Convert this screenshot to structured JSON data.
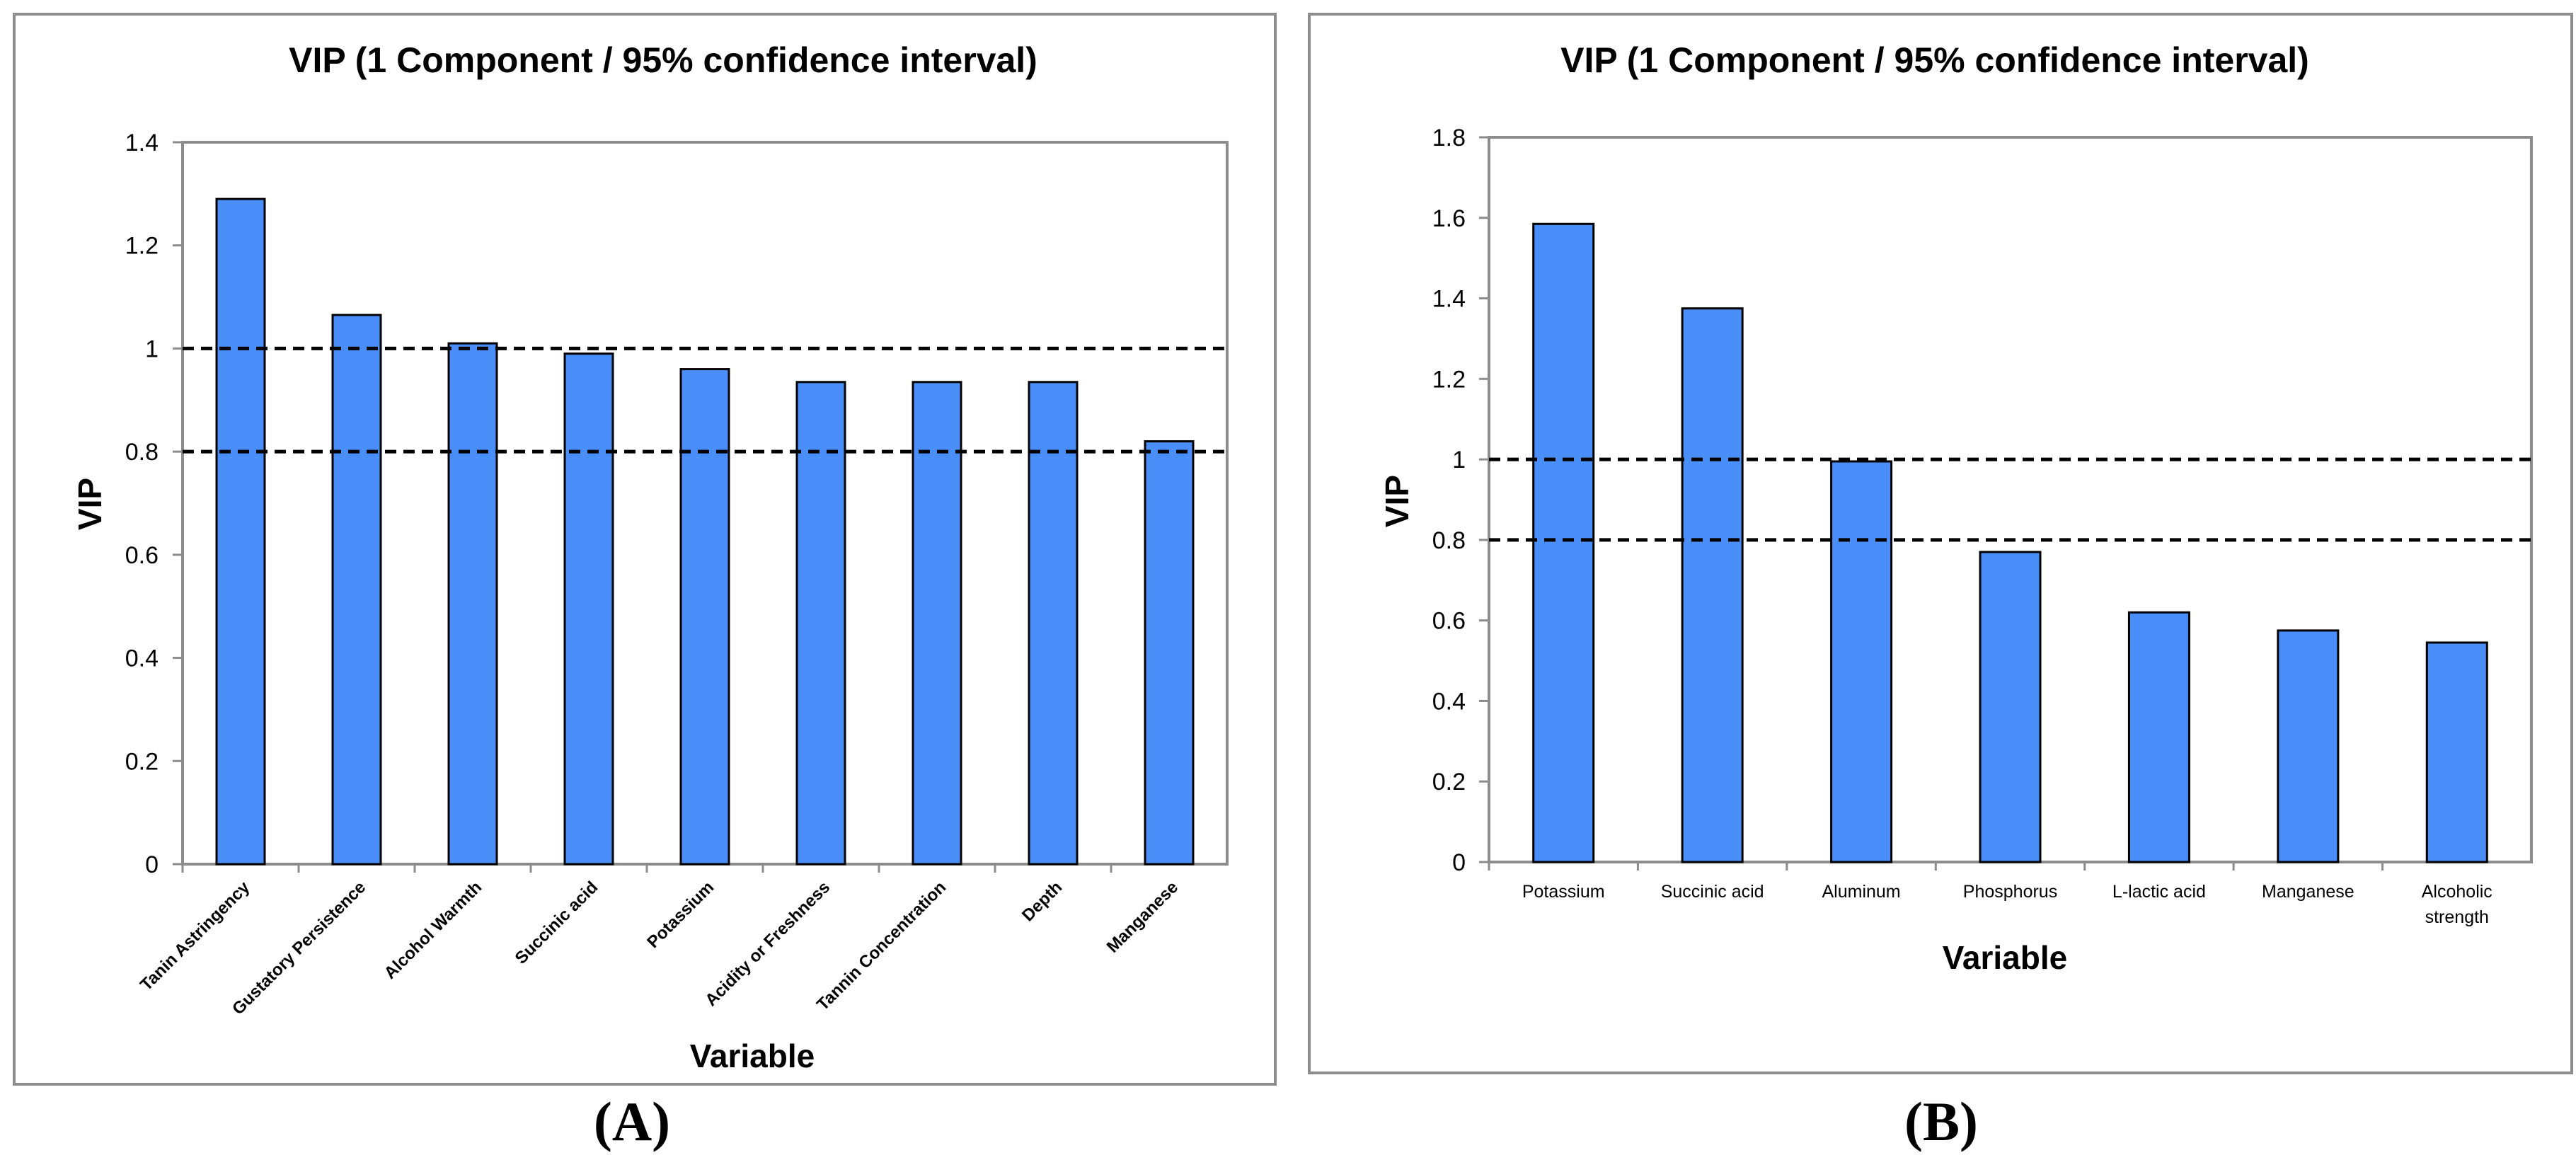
{
  "chart_data": [
    {
      "type": "bar",
      "panel_label": "(A)",
      "title": "VIP (1 Component / 95% confidence interval)",
      "xlabel": "Variable",
      "ylabel": "VIP",
      "ylim": [
        0,
        1.4
      ],
      "yticks": [
        "0",
        "0.2",
        "0.4",
        "0.6",
        "0.8",
        "1",
        "1.2",
        "1.4"
      ],
      "categories": [
        "Tanin Astringency",
        "Gustatory Persistence",
        "Alcohol Warmth",
        "Succinic acid",
        "Potassium",
        "Acidity or Freshness",
        "Tannin Concentration",
        "Depth",
        "Manganese"
      ],
      "values": [
        1.29,
        1.065,
        1.01,
        0.99,
        0.96,
        0.935,
        0.935,
        0.935,
        0.82
      ],
      "reference_lines": [
        1.0,
        0.8
      ],
      "bar_color": "#4a8ff9",
      "grid": false
    },
    {
      "type": "bar",
      "panel_label": "(B)",
      "title": "VIP (1 Component / 95% confidence interval)",
      "xlabel": "Variable",
      "ylabel": "VIP",
      "ylim": [
        0,
        1.8
      ],
      "yticks": [
        "0",
        "0.2",
        "0.4",
        "0.6",
        "0.8",
        "1",
        "1.2",
        "1.4",
        "1.6",
        "1.8"
      ],
      "categories": [
        "Potassium",
        "Succinic acid",
        "Aluminum",
        "Phosphorus",
        "L-lactic acid",
        "Manganese",
        "Alcoholic strength"
      ],
      "values": [
        1.585,
        1.375,
        0.995,
        0.77,
        0.62,
        0.575,
        0.545
      ],
      "reference_lines": [
        1.0,
        0.8
      ],
      "bar_color": "#4a8ff9",
      "grid": false
    }
  ]
}
